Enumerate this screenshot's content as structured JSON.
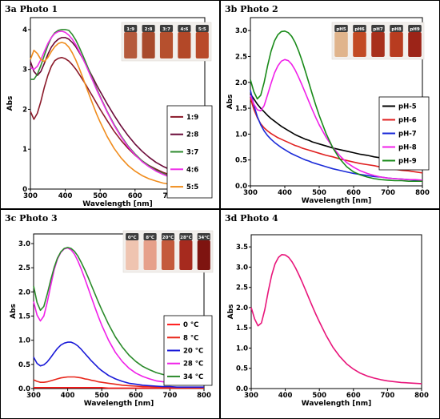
{
  "chart_data": [
    {
      "type": "line",
      "title": "3a Photo 1",
      "xlabel": "Wavelength [nm]",
      "ylabel": "Abs",
      "xlim": [
        300,
        800
      ],
      "ylim": [
        0,
        4.3
      ],
      "xticks": [
        "300",
        "400",
        "500",
        "600",
        "700",
        "800"
      ],
      "yticks": [
        "0",
        "1",
        "2",
        "3",
        "4"
      ],
      "legend_position": "right",
      "grid": false,
      "vial_labels": [
        "1:9",
        "2:8",
        "3:7",
        "4:6",
        "5:5"
      ],
      "vial_colors": [
        "#b55a3c",
        "#a84a2c",
        "#b6502e",
        "#b34828",
        "#b94a2a"
      ],
      "x": [
        300,
        310,
        320,
        330,
        340,
        350,
        360,
        370,
        380,
        390,
        400,
        410,
        420,
        430,
        440,
        450,
        460,
        470,
        480,
        490,
        500,
        520,
        540,
        560,
        580,
        600,
        620,
        640,
        660,
        680,
        700,
        720,
        740,
        760,
        780,
        800
      ],
      "series": [
        {
          "name": "1:9",
          "color": "#8b1a2a",
          "values": [
            1.95,
            1.75,
            1.9,
            2.2,
            2.55,
            2.85,
            3.08,
            3.22,
            3.28,
            3.3,
            3.27,
            3.21,
            3.12,
            3.01,
            2.88,
            2.74,
            2.6,
            2.45,
            2.3,
            2.15,
            2.0,
            1.72,
            1.45,
            1.22,
            1.02,
            0.85,
            0.71,
            0.59,
            0.5,
            0.42,
            0.36,
            0.31,
            0.27,
            0.24,
            0.22,
            0.2
          ]
        },
        {
          "name": "2:8",
          "color": "#6a0a38",
          "values": [
            3.2,
            2.95,
            2.85,
            2.95,
            3.15,
            3.38,
            3.56,
            3.68,
            3.76,
            3.8,
            3.8,
            3.76,
            3.68,
            3.57,
            3.43,
            3.28,
            3.12,
            2.95,
            2.78,
            2.61,
            2.45,
            2.14,
            1.85,
            1.58,
            1.34,
            1.13,
            0.95,
            0.8,
            0.67,
            0.57,
            0.49,
            0.42,
            0.36,
            0.32,
            0.28,
            0.25
          ]
        },
        {
          "name": "3:7",
          "color": "#2e8b2e",
          "values": [
            2.75,
            2.75,
            2.88,
            3.1,
            3.35,
            3.6,
            3.8,
            3.92,
            3.98,
            4.0,
            4.0,
            3.98,
            3.88,
            3.74,
            3.56,
            3.36,
            3.15,
            2.94,
            2.72,
            2.52,
            2.32,
            1.95,
            1.62,
            1.33,
            1.08,
            0.88,
            0.71,
            0.58,
            0.47,
            0.39,
            0.32,
            0.27,
            0.22,
            0.19,
            0.16,
            0.14
          ]
        },
        {
          "name": "4:6",
          "color": "#ee2ee8",
          "values": [
            3.05,
            3.0,
            3.08,
            3.25,
            3.45,
            3.65,
            3.8,
            3.9,
            3.95,
            3.96,
            3.93,
            3.86,
            3.76,
            3.62,
            3.46,
            3.28,
            3.09,
            2.89,
            2.69,
            2.49,
            2.3,
            1.93,
            1.6,
            1.31,
            1.06,
            0.86,
            0.69,
            0.56,
            0.45,
            0.37,
            0.3,
            0.25,
            0.21,
            0.17,
            0.15,
            0.13
          ]
        },
        {
          "name": "5:5",
          "color": "#f08c1c",
          "values": [
            3.25,
            3.48,
            3.4,
            3.25,
            3.2,
            3.3,
            3.45,
            3.57,
            3.65,
            3.68,
            3.65,
            3.56,
            3.42,
            3.24,
            3.03,
            2.8,
            2.56,
            2.33,
            2.1,
            1.88,
            1.68,
            1.32,
            1.02,
            0.78,
            0.59,
            0.45,
            0.34,
            0.26,
            0.2,
            0.15,
            0.12,
            0.1,
            0.08,
            0.07,
            0.06,
            0.05
          ]
        }
      ]
    },
    {
      "type": "line",
      "title": "3b Photo 2",
      "xlabel": "Wavelength [nm]",
      "ylabel": "Abs",
      "xlim": [
        300,
        800
      ],
      "ylim": [
        0,
        3.25
      ],
      "xticks": [
        "300",
        "400",
        "500",
        "600",
        "700",
        "800"
      ],
      "yticks": [
        "0.0",
        "0.5",
        "1.0",
        "1.5",
        "2.0",
        "2.5",
        "3.0"
      ],
      "legend_position": "right",
      "grid": false,
      "vial_labels": [
        "pH5",
        "pH6",
        "pH7",
        "pH8",
        "pH9"
      ],
      "vial_colors": [
        "#e0b48c",
        "#c24a24",
        "#a8301c",
        "#b83c20",
        "#9c2418"
      ],
      "x": [
        300,
        310,
        320,
        330,
        340,
        350,
        360,
        370,
        380,
        390,
        400,
        410,
        420,
        430,
        440,
        450,
        460,
        470,
        480,
        490,
        500,
        520,
        540,
        560,
        580,
        600,
        620,
        640,
        660,
        680,
        700,
        720,
        740,
        760,
        780,
        800
      ],
      "series": [
        {
          "name": "pH-5",
          "color": "#000000",
          "values": [
            1.78,
            1.68,
            1.58,
            1.5,
            1.43,
            1.36,
            1.3,
            1.25,
            1.2,
            1.15,
            1.11,
            1.07,
            1.03,
            0.99,
            0.96,
            0.93,
            0.9,
            0.88,
            0.85,
            0.83,
            0.81,
            0.77,
            0.73,
            0.7,
            0.67,
            0.64,
            0.61,
            0.59,
            0.56,
            0.54,
            0.52,
            0.5,
            0.48,
            0.46,
            0.44,
            0.42
          ]
        },
        {
          "name": "pH-6",
          "color": "#e02020",
          "values": [
            1.7,
            1.48,
            1.32,
            1.2,
            1.12,
            1.06,
            1.01,
            0.97,
            0.93,
            0.9,
            0.87,
            0.84,
            0.81,
            0.78,
            0.76,
            0.73,
            0.71,
            0.69,
            0.67,
            0.65,
            0.63,
            0.59,
            0.56,
            0.52,
            0.49,
            0.46,
            0.43,
            0.41,
            0.39,
            0.36,
            0.34,
            0.32,
            0.3,
            0.29,
            0.27,
            0.25
          ]
        },
        {
          "name": "pH-7",
          "color": "#1a2ad8",
          "values": [
            1.85,
            1.56,
            1.34,
            1.18,
            1.06,
            0.97,
            0.9,
            0.84,
            0.79,
            0.74,
            0.7,
            0.66,
            0.62,
            0.59,
            0.56,
            0.53,
            0.5,
            0.48,
            0.45,
            0.43,
            0.41,
            0.37,
            0.33,
            0.3,
            0.27,
            0.24,
            0.22,
            0.2,
            0.18,
            0.17,
            0.15,
            0.14,
            0.13,
            0.12,
            0.11,
            0.1
          ]
        },
        {
          "name": "pH-8",
          "color": "#f020e8",
          "values": [
            1.75,
            1.58,
            1.47,
            1.45,
            1.55,
            1.76,
            1.98,
            2.18,
            2.32,
            2.41,
            2.44,
            2.42,
            2.35,
            2.24,
            2.1,
            1.95,
            1.79,
            1.63,
            1.47,
            1.32,
            1.18,
            0.94,
            0.74,
            0.58,
            0.45,
            0.36,
            0.29,
            0.24,
            0.2,
            0.17,
            0.15,
            0.14,
            0.13,
            0.12,
            0.12,
            0.11
          ]
        },
        {
          "name": "pH-9",
          "color": "#188a18",
          "values": [
            2.05,
            1.82,
            1.68,
            1.75,
            2.0,
            2.32,
            2.6,
            2.8,
            2.92,
            2.98,
            2.99,
            2.96,
            2.89,
            2.77,
            2.61,
            2.42,
            2.21,
            1.99,
            1.77,
            1.56,
            1.36,
            1.01,
            0.73,
            0.52,
            0.37,
            0.27,
            0.21,
            0.17,
            0.14,
            0.12,
            0.11,
            0.1,
            0.1,
            0.09,
            0.09,
            0.09
          ]
        }
      ]
    },
    {
      "type": "line",
      "title": "3c Photo 3",
      "xlabel": "Wavelength [nm]",
      "ylabel": "Abs",
      "xlim": [
        300,
        800
      ],
      "ylim": [
        0,
        3.2
      ],
      "xticks": [
        "300",
        "400",
        "500",
        "600",
        "700",
        "800"
      ],
      "yticks": [
        "0.0",
        "0.5",
        "1.0",
        "1.5",
        "2.0",
        "2.5",
        "3.0"
      ],
      "legend_position": "right",
      "grid": false,
      "vial_labels": [
        "0°C",
        "8°C",
        "20°C",
        "28°C",
        "34°C"
      ],
      "vial_colors": [
        "#efc4b0",
        "#e6a08a",
        "#c45a3c",
        "#a62a1e",
        "#7e1410"
      ],
      "x": [
        300,
        310,
        320,
        330,
        340,
        350,
        360,
        370,
        380,
        390,
        400,
        410,
        420,
        430,
        440,
        450,
        460,
        470,
        480,
        490,
        500,
        520,
        540,
        560,
        580,
        600,
        620,
        640,
        660,
        680,
        700,
        720,
        740,
        760,
        780,
        800
      ],
      "series": [
        {
          "name": "0 °C",
          "color": "#ff1a1a",
          "values": [
            0.02,
            0.02,
            0.02,
            0.02,
            0.02,
            0.02,
            0.02,
            0.02,
            0.02,
            0.02,
            0.02,
            0.02,
            0.02,
            0.02,
            0.02,
            0.02,
            0.02,
            0.02,
            0.02,
            0.02,
            0.02,
            0.01,
            0.01,
            0.01,
            0.01,
            0.01,
            0.01,
            0.01,
            0.01,
            0.01,
            0.01,
            0.01,
            0.01,
            0.01,
            0.01,
            0.01
          ]
        },
        {
          "name": "8 °C",
          "color": "#e8261a",
          "values": [
            0.18,
            0.15,
            0.13,
            0.13,
            0.14,
            0.16,
            0.18,
            0.2,
            0.22,
            0.23,
            0.24,
            0.24,
            0.24,
            0.23,
            0.22,
            0.2,
            0.19,
            0.17,
            0.16,
            0.14,
            0.13,
            0.11,
            0.09,
            0.07,
            0.06,
            0.05,
            0.04,
            0.04,
            0.03,
            0.03,
            0.03,
            0.02,
            0.02,
            0.02,
            0.02,
            0.02
          ]
        },
        {
          "name": "20 °C",
          "color": "#1a1ad8",
          "values": [
            0.65,
            0.52,
            0.47,
            0.49,
            0.55,
            0.64,
            0.74,
            0.83,
            0.9,
            0.94,
            0.96,
            0.96,
            0.93,
            0.88,
            0.81,
            0.73,
            0.65,
            0.57,
            0.5,
            0.43,
            0.37,
            0.27,
            0.2,
            0.15,
            0.11,
            0.09,
            0.07,
            0.06,
            0.05,
            0.04,
            0.04,
            0.03,
            0.03,
            0.03,
            0.03,
            0.03
          ]
        },
        {
          "name": "28 °C",
          "color": "#f020e8",
          "values": [
            1.8,
            1.52,
            1.4,
            1.5,
            1.78,
            2.12,
            2.45,
            2.68,
            2.82,
            2.89,
            2.91,
            2.87,
            2.78,
            2.64,
            2.47,
            2.28,
            2.08,
            1.88,
            1.68,
            1.49,
            1.31,
            1.0,
            0.75,
            0.56,
            0.42,
            0.32,
            0.25,
            0.2,
            0.16,
            0.14,
            0.12,
            0.11,
            0.1,
            0.09,
            0.09,
            0.08
          ]
        },
        {
          "name": "34 °C",
          "color": "#2a8a2a",
          "values": [
            2.12,
            1.78,
            1.62,
            1.7,
            1.95,
            2.24,
            2.5,
            2.7,
            2.83,
            2.9,
            2.92,
            2.9,
            2.84,
            2.74,
            2.61,
            2.46,
            2.3,
            2.13,
            1.96,
            1.79,
            1.63,
            1.33,
            1.07,
            0.86,
            0.69,
            0.56,
            0.46,
            0.39,
            0.33,
            0.29,
            0.26,
            0.24,
            0.23,
            0.22,
            0.21,
            0.2
          ]
        }
      ]
    },
    {
      "type": "line",
      "title": "3d Photo 4",
      "xlabel": "Wavelength [nm]",
      "ylabel": "Abs",
      "xlim": [
        300,
        800
      ],
      "ylim": [
        0,
        3.8
      ],
      "xticks": [
        "300",
        "400",
        "500",
        "600",
        "700",
        "800"
      ],
      "yticks": [
        "0.0",
        "0.5",
        "1.0",
        "1.5",
        "2.0",
        "2.5",
        "3.0",
        "3.5"
      ],
      "legend_position": "none",
      "grid": false,
      "x": [
        300,
        310,
        320,
        330,
        340,
        350,
        360,
        370,
        380,
        390,
        400,
        410,
        420,
        430,
        440,
        450,
        460,
        470,
        480,
        490,
        500,
        520,
        540,
        560,
        580,
        600,
        620,
        640,
        660,
        680,
        700,
        720,
        740,
        760,
        780,
        800
      ],
      "series": [
        {
          "color": "#e8157a",
          "values": [
            2.0,
            1.72,
            1.55,
            1.62,
            1.95,
            2.4,
            2.8,
            3.08,
            3.24,
            3.31,
            3.3,
            3.24,
            3.13,
            2.98,
            2.81,
            2.62,
            2.42,
            2.22,
            2.02,
            1.83,
            1.65,
            1.31,
            1.02,
            0.79,
            0.61,
            0.48,
            0.38,
            0.31,
            0.26,
            0.22,
            0.19,
            0.17,
            0.15,
            0.14,
            0.13,
            0.12
          ]
        }
      ]
    }
  ]
}
